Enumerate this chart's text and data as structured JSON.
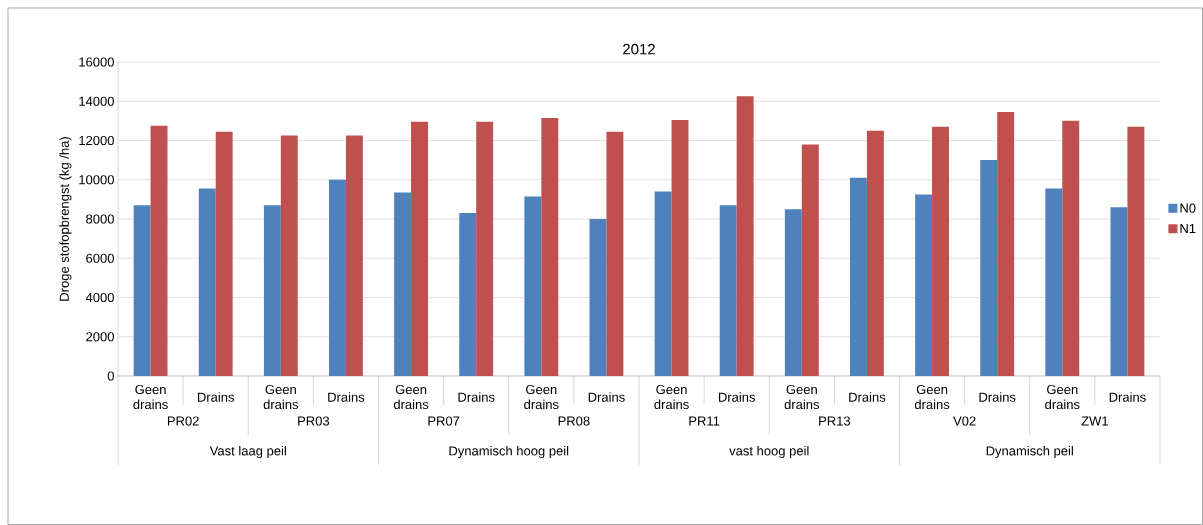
{
  "chart_data": {
    "type": "bar",
    "title": "2012",
    "ylabel": "Droge stofopbrengst (kg /ha)",
    "categories": [
      "Geen drains",
      "Drains",
      "Geen drains",
      "Drains",
      "Geen drains",
      "Drains",
      "Geen drains",
      "Drains",
      "Geen drains",
      "Drains",
      "Geen drains",
      "Drains",
      "Geen drains",
      "Drains",
      "Geen drains",
      "Drains"
    ],
    "annotations": [
      "PR02",
      "PR03",
      "PR07",
      "PR08",
      "PR11",
      "PR13",
      "V02",
      "ZW1",
      "Vast laag peil",
      "Dynamisch hoog peil",
      "vast hoog peil",
      "Dynamisch peil"
    ],
    "series": [
      {
        "name": "N0",
        "color": "#4f81bd",
        "values": [
          8700,
          9550,
          8700,
          10000,
          9350,
          8300,
          9150,
          8000,
          9400,
          8700,
          8500,
          10100,
          9250,
          11000,
          9550,
          8600
        ]
      },
      {
        "name": "N1",
        "color": "#c0504d",
        "values": [
          12750,
          12450,
          12250,
          12250,
          12950,
          12950,
          13150,
          12450,
          13050,
          14250,
          11800,
          12500,
          12700,
          13450,
          13000,
          12700
        ]
      }
    ],
    "ylim": [
      0,
      16000
    ],
    "yticks": [
      0,
      2000,
      4000,
      6000,
      8000,
      10000,
      12000,
      14000,
      16000
    ],
    "grid": "y",
    "legend": "right"
  }
}
